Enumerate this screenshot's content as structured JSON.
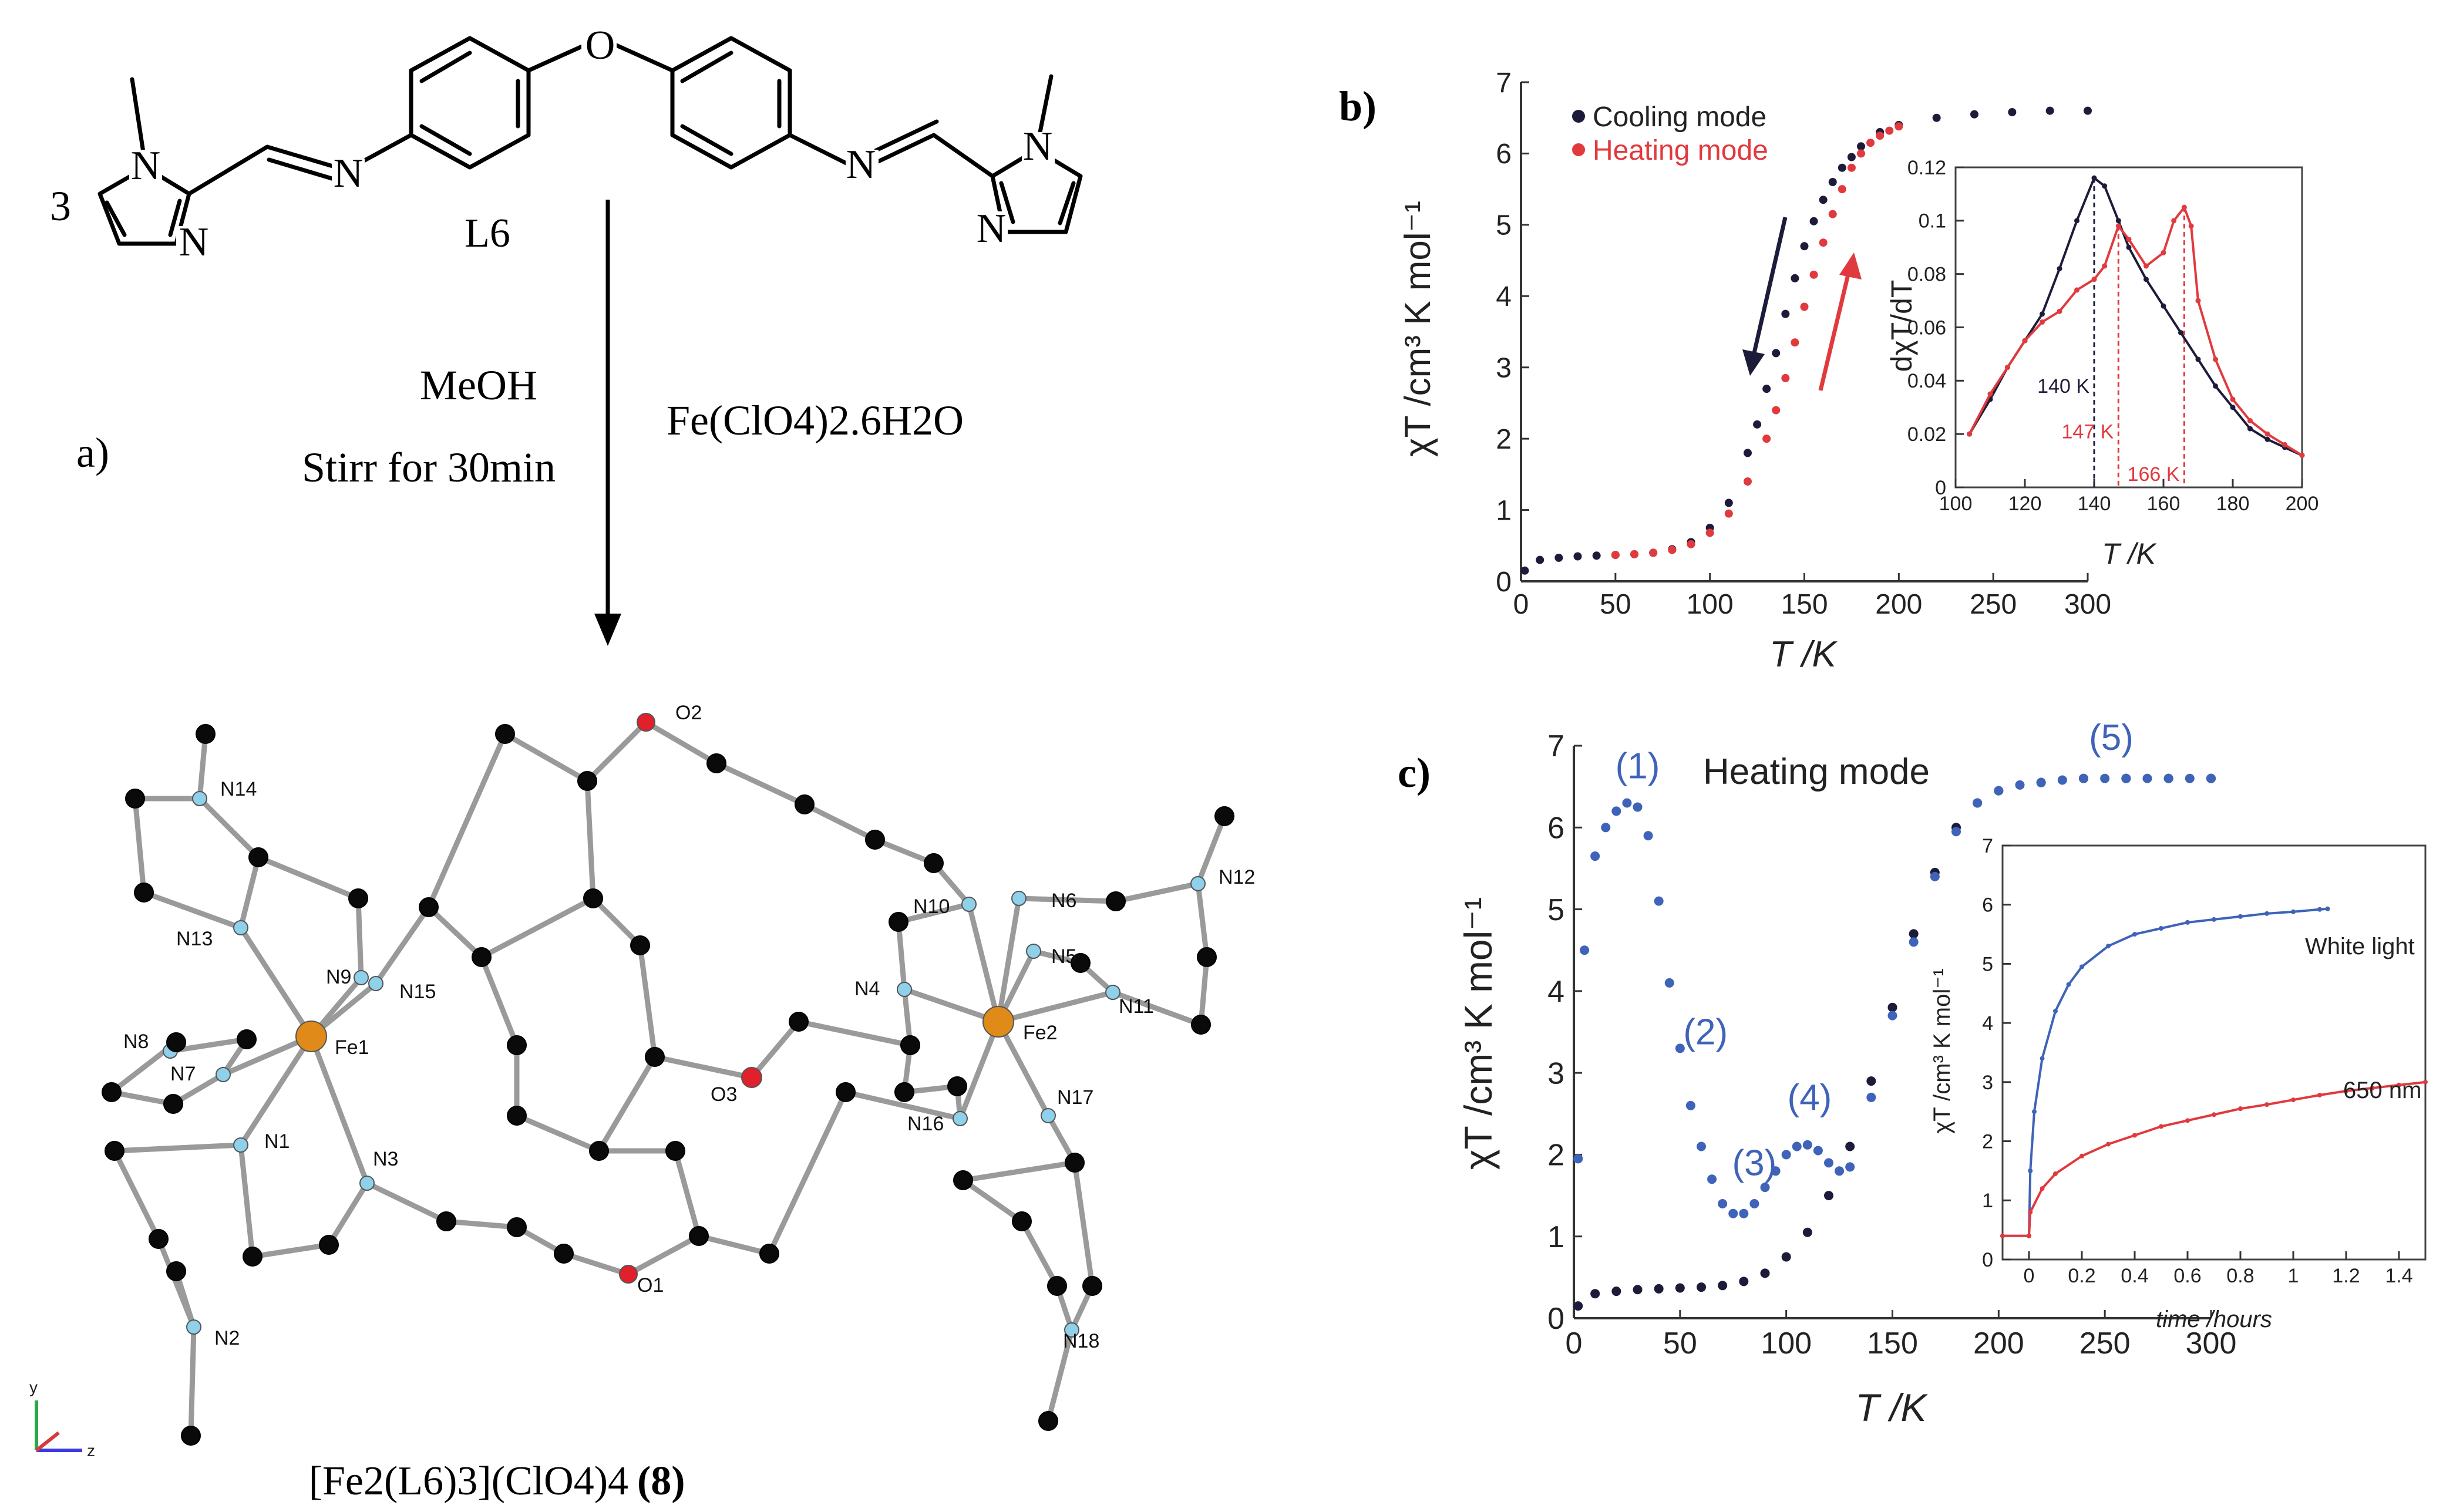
{
  "panel_a": {
    "label": "a)",
    "coefficient": "3",
    "ligand_label": "L6",
    "atom_N": "N",
    "atom_O": "O",
    "condition_solvent": "MeOH",
    "condition_time": "Stirr for 30min",
    "reagent": "Fe(ClO4)2.6H2O",
    "product_formula": "[Fe2(L6)3](ClO4)4",
    "product_number": "(8)",
    "atom_labels": [
      "O2",
      "N14",
      "N12",
      "N13",
      "N9",
      "N15",
      "N10",
      "N6",
      "N5",
      "N11",
      "N8",
      "N7",
      "Fe1",
      "N4",
      "Fe2",
      "O3",
      "N1",
      "N3",
      "N16",
      "N17",
      "N2",
      "O1",
      "N18"
    ],
    "axis_labels": [
      "y",
      "z"
    ]
  },
  "chart_data": [
    {
      "id": "b-main",
      "panel_label": "b)",
      "type": "scatter",
      "xlabel": "T /K",
      "ylabel": "χT /cm³ K mol⁻¹",
      "xlim": [
        0,
        300
      ],
      "ylim": [
        0,
        7
      ],
      "xticks": [
        0,
        50,
        100,
        150,
        200,
        250,
        300
      ],
      "yticks": [
        0,
        1,
        2,
        3,
        4,
        5,
        6,
        7
      ],
      "legend": "top-left",
      "series": [
        {
          "name": "Cooling mode",
          "color": "#1c1c3a",
          "x": [
            2,
            10,
            20,
            30,
            40,
            50,
            60,
            70,
            80,
            90,
            100,
            110,
            120,
            125,
            130,
            135,
            140,
            145,
            150,
            155,
            160,
            165,
            170,
            175,
            180,
            190,
            200,
            220,
            240,
            260,
            280,
            300
          ],
          "y": [
            0.15,
            0.3,
            0.33,
            0.35,
            0.36,
            0.37,
            0.38,
            0.4,
            0.45,
            0.55,
            0.75,
            1.1,
            1.8,
            2.2,
            2.7,
            3.2,
            3.75,
            4.25,
            4.7,
            5.05,
            5.35,
            5.6,
            5.8,
            5.95,
            6.1,
            6.3,
            6.4,
            6.5,
            6.55,
            6.58,
            6.6,
            6.6
          ]
        },
        {
          "name": "Heating mode",
          "color": "#e03a3e",
          "x": [
            50,
            60,
            70,
            80,
            90,
            100,
            110,
            120,
            130,
            135,
            140,
            145,
            150,
            155,
            160,
            165,
            170,
            175,
            180,
            185,
            190,
            195,
            200
          ],
          "y": [
            0.37,
            0.38,
            0.4,
            0.44,
            0.52,
            0.68,
            0.95,
            1.4,
            2.0,
            2.4,
            2.85,
            3.35,
            3.85,
            4.3,
            4.75,
            5.15,
            5.5,
            5.8,
            6.0,
            6.15,
            6.25,
            6.32,
            6.38
          ]
        }
      ]
    },
    {
      "id": "b-inset",
      "type": "line",
      "xlabel": "T /K",
      "ylabel": "dχT/dT",
      "xlim": [
        100,
        200
      ],
      "ylim": [
        0,
        0.12
      ],
      "xticks": [
        100,
        120,
        140,
        160,
        180,
        200
      ],
      "yticks": [
        0,
        0.02,
        0.04,
        0.06,
        0.08,
        0.1,
        0.12
      ],
      "annotations": [
        {
          "text": "140 K",
          "x": 140,
          "color": "#1c1c3a"
        },
        {
          "text": "147 K",
          "x": 147,
          "color": "#e03a3e"
        },
        {
          "text": "166 K",
          "x": 166,
          "color": "#e03a3e"
        }
      ],
      "series": [
        {
          "name": "Cooling mode",
          "color": "#1c1c3a",
          "x": [
            104,
            110,
            115,
            120,
            125,
            130,
            135,
            140,
            143,
            147,
            150,
            155,
            160,
            165,
            170,
            175,
            180,
            185,
            190,
            195,
            200
          ],
          "y": [
            0.02,
            0.033,
            0.045,
            0.055,
            0.065,
            0.082,
            0.1,
            0.116,
            0.113,
            0.1,
            0.09,
            0.078,
            0.068,
            0.058,
            0.048,
            0.038,
            0.03,
            0.022,
            0.018,
            0.015,
            0.012
          ]
        },
        {
          "name": "Heating mode",
          "color": "#e03a3e",
          "x": [
            104,
            110,
            115,
            120,
            125,
            130,
            135,
            140,
            143,
            147,
            150,
            155,
            160,
            163,
            166,
            168,
            170,
            175,
            180,
            185,
            190,
            195,
            200
          ],
          "y": [
            0.02,
            0.035,
            0.045,
            0.055,
            0.062,
            0.066,
            0.074,
            0.078,
            0.083,
            0.098,
            0.093,
            0.083,
            0.088,
            0.1,
            0.105,
            0.098,
            0.07,
            0.048,
            0.033,
            0.025,
            0.02,
            0.016,
            0.012
          ]
        }
      ]
    },
    {
      "id": "c-main",
      "panel_label": "c)",
      "type": "scatter",
      "title": "Heating mode",
      "xlabel": "T /K",
      "ylabel": "χT /cm³ K mol⁻¹",
      "xlim": [
        0,
        300
      ],
      "ylim": [
        0,
        7
      ],
      "xticks": [
        0,
        50,
        100,
        150,
        200,
        250,
        300
      ],
      "yticks": [
        0,
        1,
        2,
        3,
        4,
        5,
        6,
        7
      ],
      "annotations": [
        {
          "text": "(1)",
          "x": 30,
          "y": 6.6
        },
        {
          "text": "(2)",
          "x": 62,
          "y": 3.35
        },
        {
          "text": "(3)",
          "x": 85,
          "y": 1.75
        },
        {
          "text": "(4)",
          "x": 111,
          "y": 2.55
        },
        {
          "text": "(5)",
          "x": 253,
          "y": 6.95
        }
      ],
      "series": [
        {
          "name": "",
          "color": "#1c1c3a",
          "x": [
            2,
            10,
            20,
            30,
            40,
            50,
            60,
            70,
            80,
            90,
            100,
            110,
            120,
            130,
            140,
            150,
            160,
            170,
            180,
            190,
            200,
            220,
            240,
            260,
            280,
            300
          ],
          "y": [
            0.15,
            0.3,
            0.33,
            0.35,
            0.36,
            0.37,
            0.38,
            0.4,
            0.45,
            0.55,
            0.75,
            1.05,
            1.5,
            2.1,
            2.9,
            3.8,
            4.7,
            5.45,
            6.0,
            6.3,
            6.45,
            6.55,
            6.6,
            6.6,
            6.6,
            6.6
          ]
        },
        {
          "name": "",
          "color": "#3e63b8",
          "x": [
            2,
            5,
            10,
            15,
            20,
            25,
            30,
            35,
            40,
            45,
            50,
            55,
            60,
            65,
            70,
            75,
            80,
            85,
            90,
            95,
            100,
            105,
            110,
            115,
            120,
            125,
            130,
            140,
            150,
            160,
            170,
            180,
            190,
            200,
            210,
            220,
            230,
            240,
            250,
            260,
            270,
            280,
            290,
            300
          ],
          "y": [
            1.95,
            4.5,
            5.65,
            6.0,
            6.2,
            6.3,
            6.25,
            5.9,
            5.1,
            4.1,
            3.3,
            2.6,
            2.1,
            1.7,
            1.4,
            1.28,
            1.28,
            1.4,
            1.6,
            1.8,
            2.0,
            2.1,
            2.12,
            2.05,
            1.9,
            1.8,
            1.85,
            2.7,
            3.7,
            4.6,
            5.4,
            5.95,
            6.3,
            6.45,
            6.52,
            6.55,
            6.58,
            6.6,
            6.6,
            6.6,
            6.6,
            6.6,
            6.6,
            6.6
          ]
        }
      ]
    },
    {
      "id": "c-inset",
      "type": "line",
      "xlabel": "time /hours",
      "ylabel": "χT /cm³ K mol⁻¹",
      "xlim": [
        -0.1,
        1.5
      ],
      "ylim": [
        0,
        7
      ],
      "xticks": [
        0,
        0.2,
        0.4,
        0.6,
        0.8,
        1,
        1.2,
        1.4
      ],
      "yticks": [
        0,
        1,
        2,
        3,
        4,
        5,
        6,
        7
      ],
      "series": [
        {
          "name": "White light",
          "color": "#3e63b8",
          "x": [
            -0.1,
            0,
            0.005,
            0.02,
            0.05,
            0.1,
            0.15,
            0.2,
            0.3,
            0.4,
            0.5,
            0.6,
            0.7,
            0.8,
            0.9,
            1.0,
            1.1,
            1.13
          ],
          "y": [
            0.4,
            0.4,
            1.5,
            2.5,
            3.4,
            4.2,
            4.65,
            4.95,
            5.3,
            5.5,
            5.6,
            5.7,
            5.75,
            5.8,
            5.85,
            5.88,
            5.92,
            5.93
          ]
        },
        {
          "name": "650 nm",
          "color": "#e03a3e",
          "x": [
            -0.1,
            0,
            0.005,
            0.05,
            0.1,
            0.2,
            0.3,
            0.4,
            0.5,
            0.6,
            0.7,
            0.8,
            0.9,
            1.0,
            1.1,
            1.2,
            1.3,
            1.4,
            1.5
          ],
          "y": [
            0.4,
            0.4,
            0.8,
            1.2,
            1.45,
            1.75,
            1.95,
            2.1,
            2.25,
            2.35,
            2.45,
            2.55,
            2.62,
            2.7,
            2.78,
            2.85,
            2.9,
            2.95,
            3.0
          ]
        }
      ]
    }
  ]
}
